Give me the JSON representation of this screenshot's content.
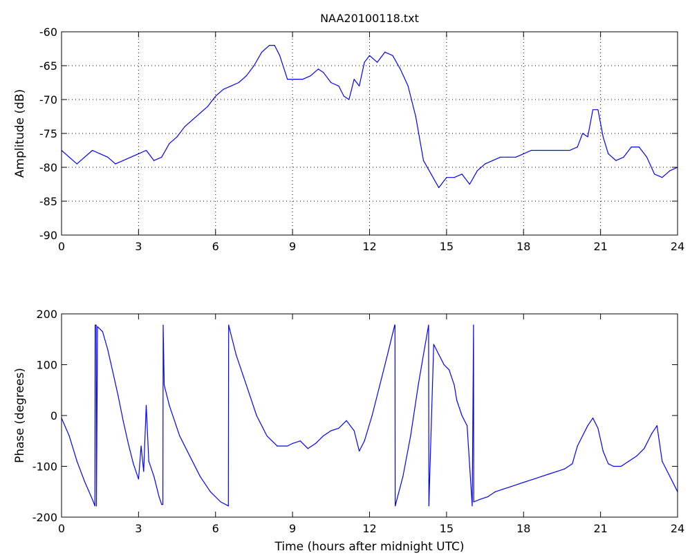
{
  "chart_data": [
    {
      "type": "line",
      "title": "NAA20100118.txt",
      "xlabel": "",
      "ylabel": "Amplitude (dB)",
      "xlim": [
        0,
        24
      ],
      "ylim": [
        -90,
        -60
      ],
      "xticks": [
        0,
        3,
        6,
        9,
        12,
        15,
        18,
        21,
        24
      ],
      "yticks": [
        -90,
        -85,
        -80,
        -75,
        -70,
        -65,
        -60
      ],
      "grid": true,
      "line_color": "#0000ff",
      "series": [
        {
          "x": [
            0,
            0.3,
            0.6,
            0.9,
            1.2,
            1.5,
            1.8,
            2.1,
            2.4,
            2.7,
            3.0,
            3.3,
            3.6,
            3.9,
            4.2,
            4.5,
            4.8,
            5.1,
            5.4,
            5.7,
            6.0,
            6.3,
            6.6,
            6.9,
            7.2,
            7.5,
            7.8,
            8.1,
            8.3,
            8.5,
            8.8,
            9.1,
            9.4,
            9.7,
            10.0,
            10.2,
            10.5,
            10.8,
            11.0,
            11.2,
            11.4,
            11.6,
            11.8,
            12.0,
            12.3,
            12.6,
            12.9,
            13.2,
            13.5,
            13.8,
            14.1,
            14.4,
            14.7,
            15.0,
            15.3,
            15.6,
            15.9,
            16.2,
            16.5,
            16.8,
            17.1,
            17.4,
            17.7,
            18.0,
            18.3,
            18.6,
            18.9,
            19.2,
            19.5,
            19.8,
            20.1,
            20.3,
            20.5,
            20.7,
            20.9,
            21.1,
            21.3,
            21.6,
            21.9,
            22.2,
            22.5,
            22.8,
            23.1,
            23.4,
            23.7,
            24.0
          ],
          "y": [
            -77.5,
            -78.5,
            -79.5,
            -78.5,
            -77.5,
            -78.0,
            -78.5,
            -79.5,
            -79.0,
            -78.5,
            -78.0,
            -77.5,
            -79.0,
            -78.5,
            -76.5,
            -75.5,
            -74.0,
            -73.0,
            -72.0,
            -71.0,
            -69.5,
            -68.5,
            -68.0,
            -67.5,
            -66.5,
            -65.0,
            -63.0,
            -62.0,
            -62.0,
            -63.5,
            -67.0,
            -67.0,
            -67.0,
            -66.5,
            -65.5,
            -66.0,
            -67.5,
            -68.0,
            -69.5,
            -70.0,
            -67.0,
            -68.0,
            -64.5,
            -63.5,
            -64.5,
            -63.0,
            -63.5,
            -65.5,
            -68.0,
            -72.5,
            -79.0,
            -81.0,
            -83.0,
            -81.5,
            -81.5,
            -81.0,
            -82.5,
            -80.5,
            -79.5,
            -79.0,
            -78.5,
            -78.5,
            -78.5,
            -78.0,
            -77.5,
            -77.5,
            -77.5,
            -77.5,
            -77.5,
            -77.5,
            -77.0,
            -75.0,
            -75.5,
            -71.5,
            -71.5,
            -75.5,
            -78.0,
            -79.0,
            -78.5,
            -77.0,
            -77.0,
            -78.5,
            -81.0,
            -81.5,
            -80.5,
            -80.0
          ]
        }
      ]
    },
    {
      "type": "line",
      "title": "",
      "xlabel": "Time (hours after midnight UTC)",
      "ylabel": "Phase (degrees)",
      "xlim": [
        0,
        24
      ],
      "ylim": [
        -200,
        200
      ],
      "xticks": [
        0,
        3,
        6,
        9,
        12,
        15,
        18,
        21,
        24
      ],
      "yticks": [
        -200,
        -100,
        0,
        100,
        200
      ],
      "grid": false,
      "line_color": "#0000ff",
      "series": [
        {
          "x": [
            0,
            0.3,
            0.6,
            0.9,
            1.2,
            1.3,
            1.31,
            1.35,
            1.36,
            1.4,
            1.6,
            1.8,
            2.0,
            2.2,
            2.4,
            2.6,
            2.8,
            3.0,
            3.1,
            3.2,
            3.3,
            3.4,
            3.6,
            3.8,
            3.9,
            3.95,
            3.96,
            4.0,
            4.2,
            4.6,
            5.0,
            5.4,
            5.8,
            6.2,
            6.5,
            6.51,
            6.55,
            6.8,
            7.2,
            7.6,
            8.0,
            8.4,
            8.8,
            9.0,
            9.3,
            9.6,
            9.9,
            10.2,
            10.5,
            10.8,
            11.1,
            11.4,
            11.6,
            11.8,
            12.1,
            12.4,
            12.7,
            12.98,
            12.99,
            13.0,
            13.3,
            13.6,
            13.9,
            14.1,
            14.3,
            14.31,
            14.5,
            14.7,
            14.9,
            15.1,
            15.3,
            15.4,
            15.6,
            15.8,
            16.0,
            16.05,
            16.06,
            16.3,
            16.6,
            16.9,
            17.2,
            17.5,
            17.8,
            18.1,
            18.4,
            18.7,
            19.0,
            19.3,
            19.6,
            19.9,
            20.1,
            20.3,
            20.5,
            20.7,
            20.9,
            21.1,
            21.3,
            21.5,
            21.8,
            22.1,
            22.4,
            22.7,
            23.0,
            23.2,
            23.4,
            23.7,
            24.0
          ],
          "y": [
            -5,
            -40,
            -90,
            -130,
            -165,
            -178,
            178,
            178,
            -178,
            175,
            165,
            130,
            85,
            40,
            -10,
            -55,
            -95,
            -125,
            -60,
            -110,
            20,
            -90,
            -120,
            -160,
            -175,
            -175,
            178,
            60,
            20,
            -40,
            -80,
            -120,
            -150,
            -170,
            -178,
            178,
            170,
            120,
            60,
            0,
            -40,
            -60,
            -60,
            -55,
            -50,
            -65,
            -55,
            -40,
            -30,
            -25,
            -10,
            -30,
            -70,
            -50,
            0,
            60,
            120,
            178,
            178,
            -178,
            -120,
            -40,
            60,
            120,
            178,
            -178,
            140,
            120,
            100,
            90,
            60,
            30,
            0,
            -20,
            -178,
            178,
            -170,
            -165,
            -160,
            -150,
            -145,
            -140,
            -135,
            -130,
            -125,
            -120,
            -115,
            -110,
            -105,
            -95,
            -60,
            -40,
            -20,
            -5,
            -25,
            -70,
            -95,
            -100,
            -100,
            -90,
            -80,
            -65,
            -35,
            -20,
            -90,
            -120,
            -150
          ]
        }
      ]
    }
  ]
}
